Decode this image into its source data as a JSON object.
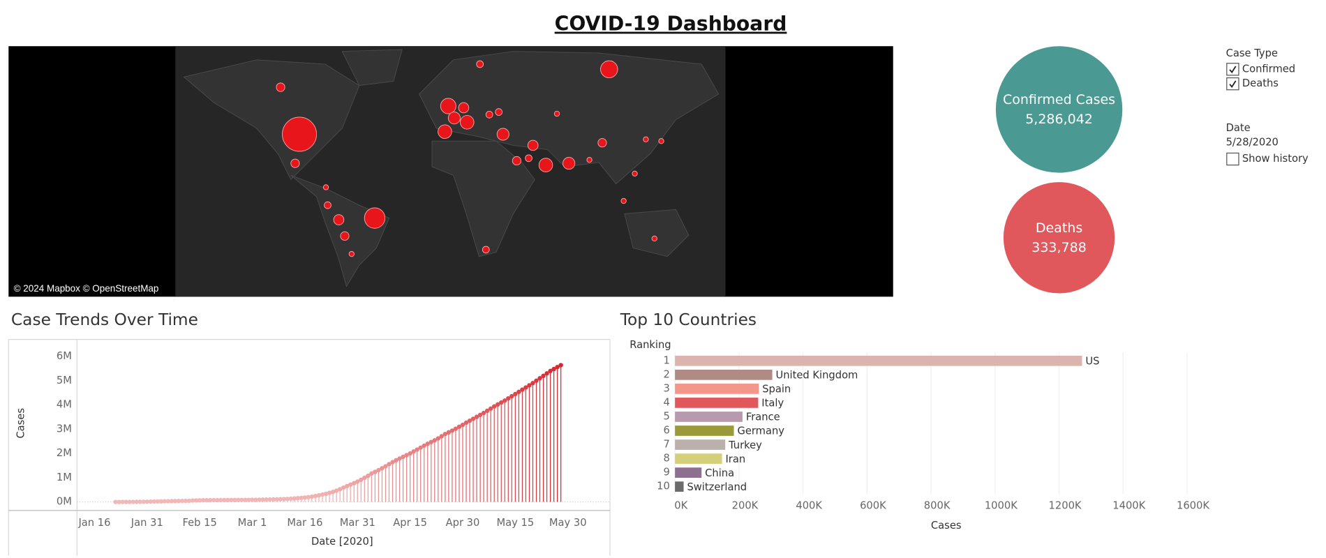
{
  "title": "COVID-19 Dashboard",
  "map": {
    "attribution": "© 2024 Mapbox © OpenStreetMap"
  },
  "kpis": [
    {
      "label": "Confirmed Cases",
      "value": "5,286,042",
      "color": "#4a9a93"
    },
    {
      "label": "Deaths",
      "value": "333,788",
      "color": "#e0585c"
    }
  ],
  "filters": {
    "case_type": {
      "title": "Case Type",
      "options": [
        {
          "label": "Confirmed",
          "checked": true
        },
        {
          "label": "Deaths",
          "checked": true
        }
      ]
    },
    "date": {
      "title": "Date",
      "value": "5/28/2020",
      "show_history": {
        "label": "Show history",
        "checked": false
      }
    }
  },
  "chart_data": [
    {
      "type": "lollipop",
      "title": "Case Trends Over Time",
      "x_label": "Date [2020]",
      "y_label": "Cases",
      "color_range": [
        "#f2b8b8",
        "#d7262e"
      ],
      "x": [
        "2020-01-22",
        "2020-01-23",
        "2020-01-24",
        "2020-01-25",
        "2020-01-26",
        "2020-01-27",
        "2020-01-28",
        "2020-01-29",
        "2020-01-30",
        "2020-01-31",
        "2020-02-01",
        "2020-02-02",
        "2020-02-03",
        "2020-02-04",
        "2020-02-05",
        "2020-02-06",
        "2020-02-07",
        "2020-02-08",
        "2020-02-09",
        "2020-02-10",
        "2020-02-11",
        "2020-02-12",
        "2020-02-13",
        "2020-02-14",
        "2020-02-15",
        "2020-02-16",
        "2020-02-17",
        "2020-02-18",
        "2020-02-19",
        "2020-02-20",
        "2020-02-21",
        "2020-02-22",
        "2020-02-23",
        "2020-02-24",
        "2020-02-25",
        "2020-02-26",
        "2020-02-27",
        "2020-02-28",
        "2020-02-29",
        "2020-03-01",
        "2020-03-02",
        "2020-03-03",
        "2020-03-04",
        "2020-03-05",
        "2020-03-06",
        "2020-03-07",
        "2020-03-08",
        "2020-03-09",
        "2020-03-10",
        "2020-03-11",
        "2020-03-12",
        "2020-03-13",
        "2020-03-14",
        "2020-03-15",
        "2020-03-16",
        "2020-03-17",
        "2020-03-18",
        "2020-03-19",
        "2020-03-20",
        "2020-03-21",
        "2020-03-22",
        "2020-03-23",
        "2020-03-24",
        "2020-03-25",
        "2020-03-26",
        "2020-03-27",
        "2020-03-28",
        "2020-03-29",
        "2020-03-30",
        "2020-03-31",
        "2020-04-01",
        "2020-04-02",
        "2020-04-03",
        "2020-04-04",
        "2020-04-05",
        "2020-04-06",
        "2020-04-07",
        "2020-04-08",
        "2020-04-09",
        "2020-04-10",
        "2020-04-11",
        "2020-04-12",
        "2020-04-13",
        "2020-04-14",
        "2020-04-15",
        "2020-04-16",
        "2020-04-17",
        "2020-04-18",
        "2020-04-19",
        "2020-04-20",
        "2020-04-21",
        "2020-04-22",
        "2020-04-23",
        "2020-04-24",
        "2020-04-25",
        "2020-04-26",
        "2020-04-27",
        "2020-04-28",
        "2020-04-29",
        "2020-04-30",
        "2020-05-01",
        "2020-05-02",
        "2020-05-03",
        "2020-05-04",
        "2020-05-05",
        "2020-05-06",
        "2020-05-07",
        "2020-05-08",
        "2020-05-09",
        "2020-05-10",
        "2020-05-11",
        "2020-05-12",
        "2020-05-13",
        "2020-05-14",
        "2020-05-15",
        "2020-05-16",
        "2020-05-17",
        "2020-05-18",
        "2020-05-19",
        "2020-05-20",
        "2020-05-21",
        "2020-05-22",
        "2020-05-23",
        "2020-05-24",
        "2020-05-25",
        "2020-05-26",
        "2020-05-27",
        "2020-05-28"
      ],
      "values": [
        600,
        700,
        900,
        1400,
        2100,
        2900,
        5600,
        6200,
        8200,
        9900,
        15000,
        18000,
        21000,
        24000,
        28000,
        31000,
        34000,
        37000,
        40000,
        43000,
        45000,
        47000,
        60000,
        65000,
        68000,
        70000,
        72000,
        74000,
        75000,
        76000,
        77000,
        78000,
        79000,
        80000,
        81000,
        82000,
        83000,
        84000,
        86000,
        88000,
        90000,
        93000,
        95000,
        98000,
        102000,
        106000,
        110000,
        114000,
        119000,
        126000,
        135000,
        146000,
        157000,
        169000,
        184000,
        198000,
        220000,
        245000,
        275000,
        305000,
        335000,
        375000,
        415000,
        465000,
        525000,
        590000,
        655000,
        715000,
        775000,
        840000,
        915000,
        995000,
        1080000,
        1170000,
        1240000,
        1310000,
        1390000,
        1470000,
        1560000,
        1640000,
        1720000,
        1790000,
        1860000,
        1930000,
        2000000,
        2080000,
        2160000,
        2240000,
        2320000,
        2400000,
        2470000,
        2540000,
        2620000,
        2710000,
        2800000,
        2870000,
        2940000,
        3020000,
        3100000,
        3180000,
        3270000,
        3350000,
        3430000,
        3510000,
        3590000,
        3670000,
        3760000,
        3850000,
        3940000,
        4020000,
        4100000,
        4180000,
        4270000,
        4360000,
        4450000,
        4540000,
        4630000,
        4720000,
        4810000,
        4900000,
        5000000,
        5100000,
        5200000,
        5300000,
        5400000,
        5480000,
        5560000,
        5640000
      ],
      "xlim": [
        "2020-01-11",
        "2020-06-11"
      ],
      "xticks": [
        {
          "value": "2020-01-16",
          "label": "Jan 16"
        },
        {
          "value": "2020-01-31",
          "label": "Jan 31"
        },
        {
          "value": "2020-02-15",
          "label": "Feb 15"
        },
        {
          "value": "2020-03-01",
          "label": "Mar 1"
        },
        {
          "value": "2020-03-16",
          "label": "Mar 16"
        },
        {
          "value": "2020-03-31",
          "label": "Mar 31"
        },
        {
          "value": "2020-04-15",
          "label": "Apr 15"
        },
        {
          "value": "2020-04-30",
          "label": "Apr 30"
        },
        {
          "value": "2020-05-15",
          "label": "May 15"
        },
        {
          "value": "2020-05-30",
          "label": "May 30"
        }
      ],
      "ylim": [
        -350000,
        6700000
      ],
      "yticks": [
        {
          "value": 0,
          "label": "0M"
        },
        {
          "value": 1000000,
          "label": "1M"
        },
        {
          "value": 2000000,
          "label": "2M"
        },
        {
          "value": 3000000,
          "label": "3M"
        },
        {
          "value": 4000000,
          "label": "4M"
        },
        {
          "value": 5000000,
          "label": "5M"
        },
        {
          "value": 6000000,
          "label": "6M"
        }
      ],
      "grid": false
    },
    {
      "type": "bar",
      "orientation": "horizontal",
      "title": "Top 10 Countries",
      "y_label": "Ranking",
      "x_label": "Cases",
      "categories": [
        "1",
        "2",
        "3",
        "4",
        "5",
        "6",
        "7",
        "8",
        "9",
        "10"
      ],
      "labels": [
        "US",
        "United Kingdom",
        "Spain",
        "Italy",
        "France",
        "Germany",
        "Turkey",
        "Iran",
        "China",
        "Switzerland"
      ],
      "values": [
        1272000,
        304000,
        262000,
        260000,
        211000,
        184000,
        157000,
        147000,
        83000,
        27000
      ],
      "colors": [
        "#dcb4ae",
        "#b08a85",
        "#f5968a",
        "#e0585c",
        "#b79aae",
        "#9a9a3a",
        "#bab0ac",
        "#d4cf7a",
        "#8f6f8f",
        "#6b6b6b"
      ],
      "xlim": [
        0,
        1700000
      ],
      "xticks": [
        {
          "value": 0,
          "label": "0K"
        },
        {
          "value": 200000,
          "label": "200K"
        },
        {
          "value": 400000,
          "label": "400K"
        },
        {
          "value": 600000,
          "label": "600K"
        },
        {
          "value": 800000,
          "label": "800K"
        },
        {
          "value": 1000000,
          "label": "1000K"
        },
        {
          "value": 1200000,
          "label": "1200K"
        },
        {
          "value": 1400000,
          "label": "1400K"
        },
        {
          "value": 1600000,
          "label": "1600K"
        }
      ],
      "grid": true
    }
  ]
}
